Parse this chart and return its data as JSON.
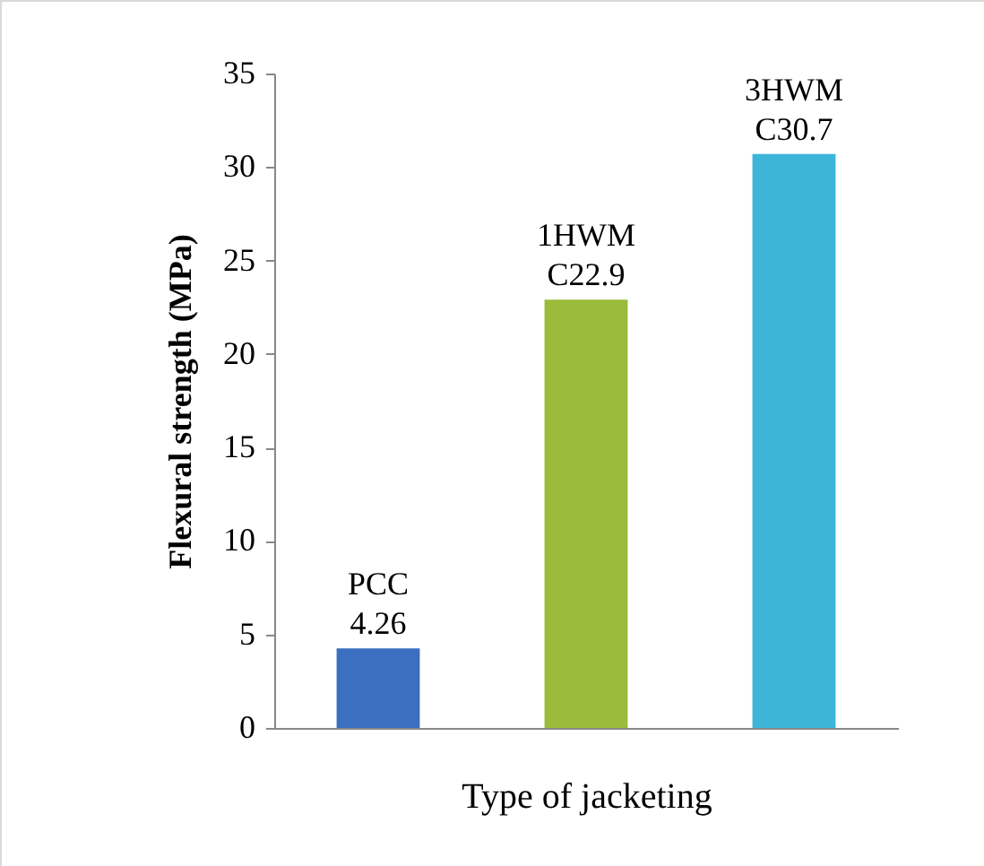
{
  "chart_data": {
    "type": "bar",
    "xlabel": "Type of jacketing",
    "ylabel": "Flexural strength (MPa)",
    "categories": [
      null,
      null,
      null
    ],
    "values": [
      4.26,
      22.9,
      30.7
    ],
    "colors": [
      "#3b6fc0",
      "#9bbb3b",
      "#3db5d9"
    ],
    "value_labels": [
      "PCC 4.26",
      "1HWM C22.9",
      "3HWM C30.7"
    ],
    "ylim": [
      0,
      35
    ],
    "yticks": [
      0,
      5,
      10,
      15,
      20,
      25,
      30,
      35
    ],
    "grid": false
  }
}
